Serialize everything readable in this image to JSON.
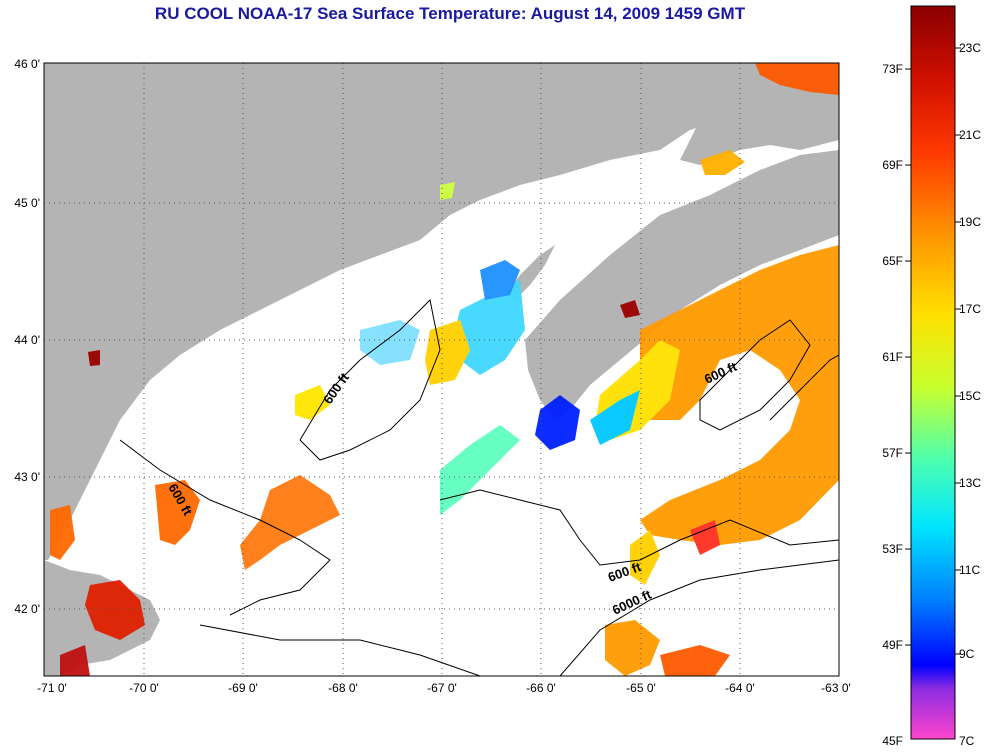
{
  "title": "RU COOL  NOAA-17  Sea Surface Temperature:  August 14, 2009 1459 GMT",
  "map": {
    "lon_ticks": [
      "-71 0'",
      "-70 0'",
      "-69 0'",
      "-68 0'",
      "-67 0'",
      "-66 0'",
      "-65 0'",
      "-64 0'",
      "-63 0'"
    ],
    "lat_ticks": [
      "46 0'",
      "45 0'",
      "44 0'",
      "43 0'",
      "42 0'"
    ],
    "contour_labels": [
      "600 ft",
      "600 ft",
      "600 ft",
      "600 ft",
      "6000 ft"
    ],
    "colors": {
      "land": "#b4b4b4",
      "water_nodata": "#ffffff",
      "grid": "#555555"
    }
  },
  "colorbar": {
    "fahrenheit_labels": [
      "73F",
      "69F",
      "65F",
      "61F",
      "57F",
      "53F",
      "49F",
      "45F"
    ],
    "celsius_labels": [
      "23C",
      "21C",
      "19C",
      "17C",
      "15C",
      "13C",
      "11C",
      "9C",
      "7C"
    ],
    "gradient": [
      "#ff44cc",
      "#8a2be2",
      "#0000ff",
      "#0080ff",
      "#00e5ff",
      "#4cffb0",
      "#c8ff2e",
      "#ffe000",
      "#ff9a00",
      "#ff3a00",
      "#d01000",
      "#8b0000"
    ]
  }
}
